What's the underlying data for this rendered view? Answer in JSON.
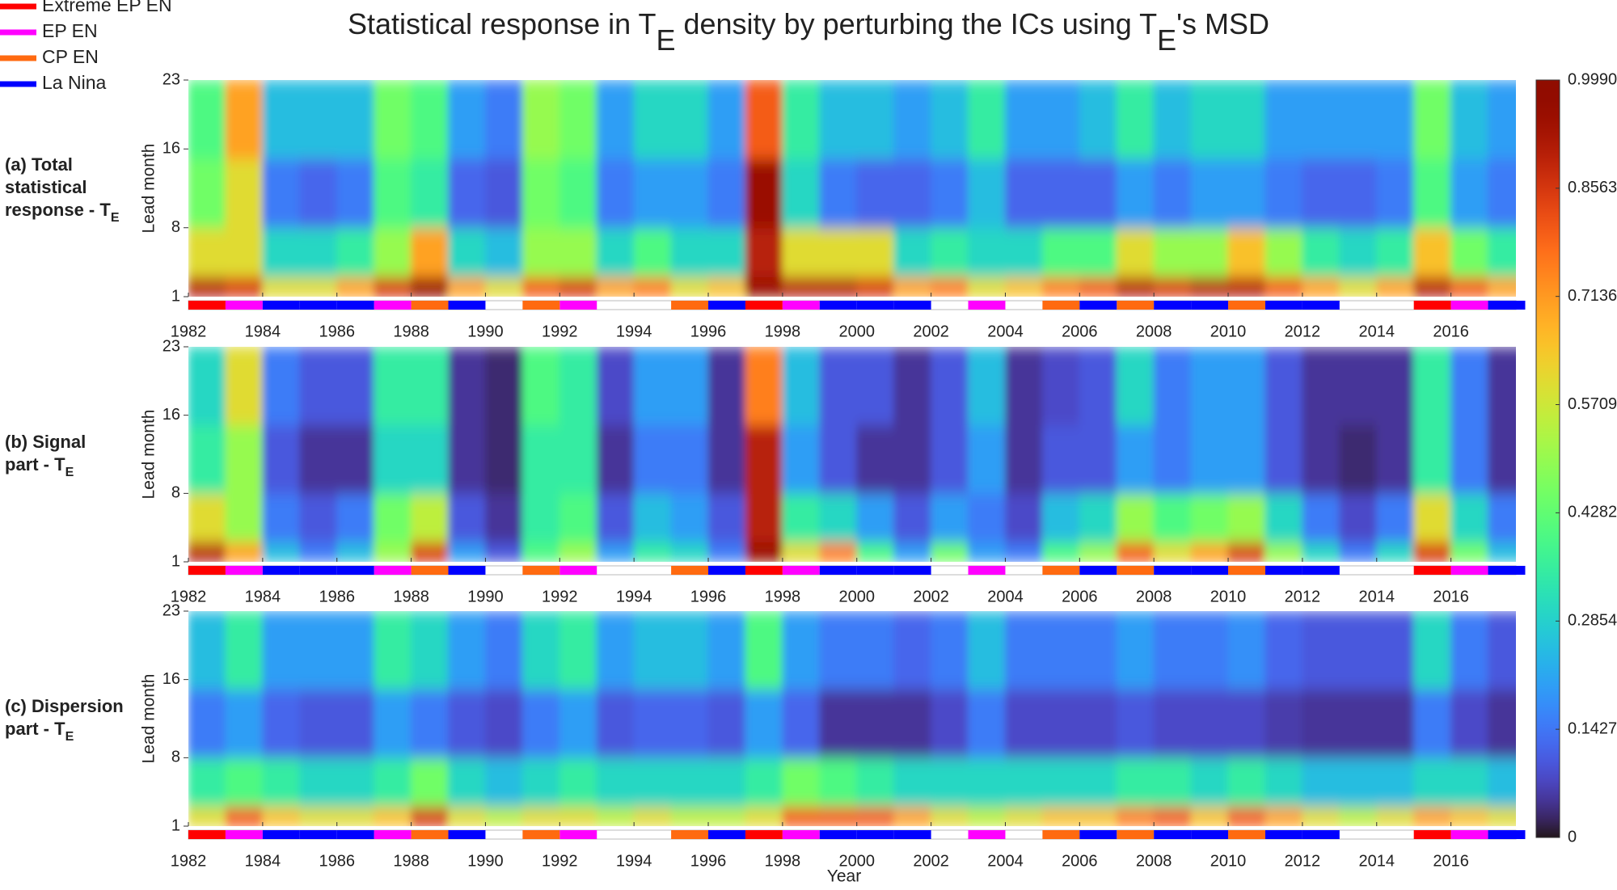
{
  "chart_data": {
    "type": "heatmap",
    "title": [
      "Statistical response in T",
      "E",
      " density by perturbing the ICs using T",
      "E",
      "'s MSD"
    ],
    "colormap": "turbo",
    "xlabel": "Year",
    "ylabel": "Lead month",
    "x": [
      1982,
      1983,
      1984,
      1985,
      1986,
      1987,
      1988,
      1989,
      1990,
      1991,
      1992,
      1993,
      1994,
      1995,
      1996,
      1997,
      1998,
      1999,
      2000,
      2001,
      2002,
      2003,
      2004,
      2005,
      2006,
      2007,
      2008,
      2009,
      2010,
      2011,
      2012,
      2013,
      2014,
      2015,
      2016,
      2017
    ],
    "xlim": [
      1982,
      2017.75
    ],
    "xticks": [
      1982,
      1984,
      1986,
      1988,
      1990,
      1992,
      1994,
      1996,
      1998,
      2000,
      2002,
      2004,
      2006,
      2008,
      2010,
      2012,
      2014,
      2016
    ],
    "y_bins": [
      1,
      3,
      8,
      15,
      23
    ],
    "ylim": [
      1,
      23
    ],
    "yticks": [
      1,
      8,
      16,
      23
    ],
    "clim": [
      0,
      0.999
    ],
    "cticks": [
      0,
      0.1427,
      0.2854,
      0.4282,
      0.5709,
      0.7136,
      0.8563,
      {
        "value": 0.999,
        "label": "0.9990"
      }
    ],
    "legend_corner": "upper-left",
    "enso_series": [
      {
        "name": "Extreme EP EN",
        "color": "#ff0000",
        "years": [
          1982,
          1997,
          2015
        ]
      },
      {
        "name": "EP EN",
        "color": "#ff00ff",
        "years": [
          1983,
          1987,
          1992,
          1998,
          2003,
          2016
        ]
      },
      {
        "name": "CP EN",
        "color": "#ff6a10",
        "years": [
          1988,
          1991,
          1995,
          2005,
          2007,
          2010
        ]
      },
      {
        "name": "La Nina",
        "color": "#0000ff",
        "years": [
          1984,
          1985,
          1986,
          1989,
          1996,
          1999,
          2000,
          2001,
          2006,
          2008,
          2009,
          2011,
          2012,
          2017
        ]
      }
    ],
    "panels": [
      {
        "label": [
          "(a) Total",
          "statistical",
          "response - T"
        ],
        "label_sub": "E",
        "z": [
          [
            0.9,
            0.85,
            0.6,
            0.6,
            0.7,
            0.85,
            0.95,
            0.7,
            0.6,
            0.8,
            0.85,
            0.7,
            0.75,
            0.6,
            0.65,
            0.95,
            0.9,
            0.9,
            0.85,
            0.7,
            0.75,
            0.6,
            0.65,
            0.75,
            0.8,
            0.9,
            0.85,
            0.9,
            0.9,
            0.8,
            0.7,
            0.6,
            0.7,
            0.9,
            0.8,
            0.7
          ],
          [
            0.6,
            0.6,
            0.3,
            0.3,
            0.35,
            0.5,
            0.7,
            0.3,
            0.25,
            0.5,
            0.5,
            0.3,
            0.4,
            0.3,
            0.3,
            0.9,
            0.6,
            0.6,
            0.6,
            0.3,
            0.35,
            0.3,
            0.3,
            0.4,
            0.4,
            0.6,
            0.5,
            0.5,
            0.65,
            0.5,
            0.35,
            0.3,
            0.35,
            0.65,
            0.45,
            0.35
          ],
          [
            0.45,
            0.6,
            0.15,
            0.12,
            0.15,
            0.4,
            0.35,
            0.12,
            0.1,
            0.45,
            0.4,
            0.15,
            0.2,
            0.2,
            0.15,
            0.95,
            0.3,
            0.15,
            0.12,
            0.12,
            0.15,
            0.25,
            0.12,
            0.12,
            0.12,
            0.2,
            0.15,
            0.2,
            0.2,
            0.15,
            0.12,
            0.12,
            0.15,
            0.4,
            0.2,
            0.15
          ],
          [
            0.4,
            0.7,
            0.25,
            0.25,
            0.25,
            0.45,
            0.4,
            0.2,
            0.15,
            0.5,
            0.45,
            0.2,
            0.3,
            0.3,
            0.2,
            0.8,
            0.35,
            0.25,
            0.25,
            0.2,
            0.25,
            0.35,
            0.2,
            0.2,
            0.25,
            0.35,
            0.25,
            0.3,
            0.3,
            0.2,
            0.2,
            0.2,
            0.2,
            0.45,
            0.25,
            0.2
          ]
        ]
      },
      {
        "label": [
          "(b) Signal",
          "part - T"
        ],
        "label_sub": "E",
        "z": [
          [
            0.9,
            0.7,
            0.25,
            0.15,
            0.25,
            0.5,
            0.85,
            0.2,
            0.1,
            0.4,
            0.5,
            0.2,
            0.35,
            0.3,
            0.15,
            0.95,
            0.6,
            0.75,
            0.4,
            0.2,
            0.45,
            0.2,
            0.15,
            0.4,
            0.5,
            0.8,
            0.6,
            0.7,
            0.85,
            0.5,
            0.3,
            0.15,
            0.3,
            0.85,
            0.45,
            0.25
          ],
          [
            0.6,
            0.5,
            0.15,
            0.1,
            0.15,
            0.45,
            0.55,
            0.1,
            0.05,
            0.35,
            0.4,
            0.1,
            0.25,
            0.2,
            0.1,
            0.9,
            0.35,
            0.3,
            0.2,
            0.1,
            0.2,
            0.15,
            0.08,
            0.25,
            0.3,
            0.5,
            0.4,
            0.45,
            0.5,
            0.3,
            0.15,
            0.08,
            0.15,
            0.6,
            0.3,
            0.15
          ],
          [
            0.35,
            0.5,
            0.1,
            0.05,
            0.05,
            0.3,
            0.3,
            0.05,
            0.03,
            0.35,
            0.35,
            0.05,
            0.15,
            0.15,
            0.05,
            0.9,
            0.2,
            0.1,
            0.05,
            0.05,
            0.1,
            0.2,
            0.05,
            0.1,
            0.1,
            0.2,
            0.15,
            0.2,
            0.2,
            0.1,
            0.05,
            0.03,
            0.05,
            0.35,
            0.15,
            0.05
          ],
          [
            0.3,
            0.6,
            0.15,
            0.1,
            0.1,
            0.35,
            0.35,
            0.05,
            0.03,
            0.4,
            0.35,
            0.08,
            0.2,
            0.2,
            0.05,
            0.75,
            0.25,
            0.1,
            0.1,
            0.05,
            0.1,
            0.25,
            0.05,
            0.08,
            0.1,
            0.3,
            0.15,
            0.2,
            0.2,
            0.1,
            0.05,
            0.05,
            0.05,
            0.35,
            0.15,
            0.05
          ]
        ]
      },
      {
        "label": [
          "(c) Dispersion",
          "part - T"
        ],
        "label_sub": "E",
        "z": [
          [
            0.6,
            0.8,
            0.65,
            0.6,
            0.6,
            0.65,
            0.85,
            0.6,
            0.55,
            0.6,
            0.6,
            0.55,
            0.6,
            0.55,
            0.55,
            0.6,
            0.8,
            0.8,
            0.8,
            0.7,
            0.6,
            0.55,
            0.6,
            0.65,
            0.65,
            0.75,
            0.8,
            0.65,
            0.8,
            0.7,
            0.6,
            0.55,
            0.6,
            0.7,
            0.65,
            0.6
          ],
          [
            0.35,
            0.4,
            0.35,
            0.3,
            0.3,
            0.35,
            0.45,
            0.3,
            0.25,
            0.3,
            0.35,
            0.3,
            0.3,
            0.3,
            0.3,
            0.35,
            0.45,
            0.4,
            0.35,
            0.3,
            0.3,
            0.3,
            0.3,
            0.3,
            0.3,
            0.35,
            0.35,
            0.3,
            0.35,
            0.3,
            0.25,
            0.25,
            0.25,
            0.3,
            0.3,
            0.25
          ],
          [
            0.15,
            0.2,
            0.12,
            0.1,
            0.1,
            0.2,
            0.15,
            0.1,
            0.08,
            0.15,
            0.2,
            0.1,
            0.12,
            0.12,
            0.1,
            0.2,
            0.12,
            0.05,
            0.05,
            0.05,
            0.08,
            0.15,
            0.08,
            0.08,
            0.08,
            0.1,
            0.08,
            0.08,
            0.08,
            0.06,
            0.05,
            0.05,
            0.05,
            0.15,
            0.08,
            0.05
          ],
          [
            0.25,
            0.35,
            0.2,
            0.2,
            0.2,
            0.35,
            0.3,
            0.2,
            0.15,
            0.3,
            0.35,
            0.2,
            0.25,
            0.25,
            0.2,
            0.4,
            0.2,
            0.15,
            0.15,
            0.12,
            0.15,
            0.25,
            0.15,
            0.15,
            0.15,
            0.2,
            0.15,
            0.15,
            0.18,
            0.12,
            0.1,
            0.1,
            0.1,
            0.3,
            0.15,
            0.1
          ]
        ]
      }
    ]
  }
}
